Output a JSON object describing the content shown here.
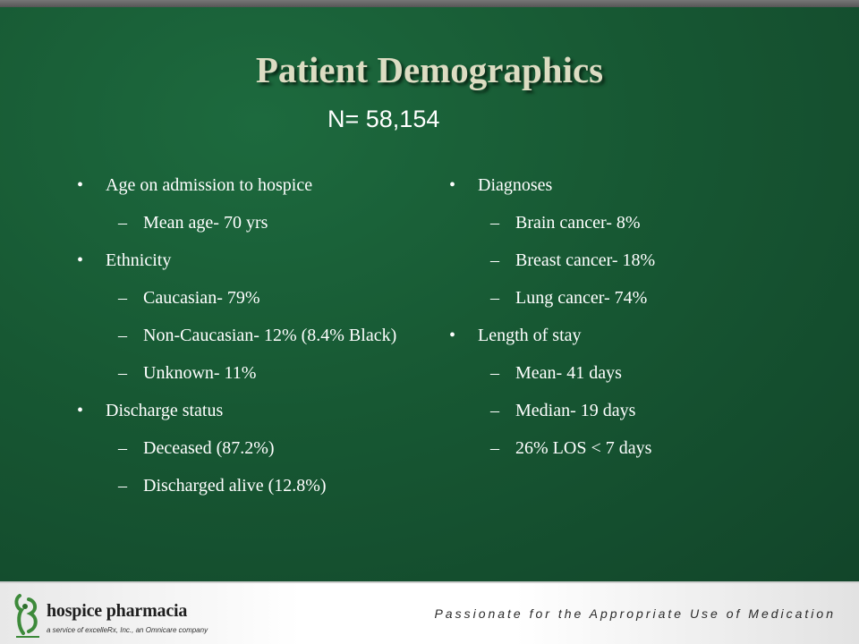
{
  "slide": {
    "title": "Patient Demographics",
    "sample_size": "N= 58,154",
    "bullet_char": "•",
    "dash_char": "–",
    "left_column": [
      {
        "level": 1,
        "text": "Age on admission to hospice"
      },
      {
        "level": 2,
        "text": "Mean age- 70 yrs"
      },
      {
        "level": 1,
        "text": "Ethnicity"
      },
      {
        "level": 2,
        "text": "Caucasian- 79%"
      },
      {
        "level": 2,
        "text": "Non-Caucasian- 12% (8.4% Black)"
      },
      {
        "level": 2,
        "text": "Unknown- 11%"
      },
      {
        "level": 1,
        "text": "Discharge status"
      },
      {
        "level": 2,
        "text": "Deceased (87.2%)"
      },
      {
        "level": 2,
        "text": "Discharged alive (12.8%)"
      }
    ],
    "right_column": [
      {
        "level": 1,
        "text": "Diagnoses"
      },
      {
        "level": 2,
        "text": "Brain cancer- 8%"
      },
      {
        "level": 2,
        "text": "Breast cancer- 18%"
      },
      {
        "level": 2,
        "text": "Lung cancer- 74%"
      },
      {
        "level": 1,
        "text": "Length of stay"
      },
      {
        "level": 2,
        "text": "Mean- 41 days"
      },
      {
        "level": 2,
        "text": "Median- 19 days"
      },
      {
        "level": 2,
        "text": "26% LOS < 7 days"
      }
    ]
  },
  "footer": {
    "logo_name": "hospice pharmacia",
    "logo_tagline": "a service of excelleRx, Inc., an Omnicare company",
    "tagline": "Passionate for the Appropriate Use of Medication"
  },
  "colors": {
    "background": "#175833",
    "title": "#dcdcc2",
    "text": "#ffffff",
    "logo_green": "#3d8a3a"
  }
}
